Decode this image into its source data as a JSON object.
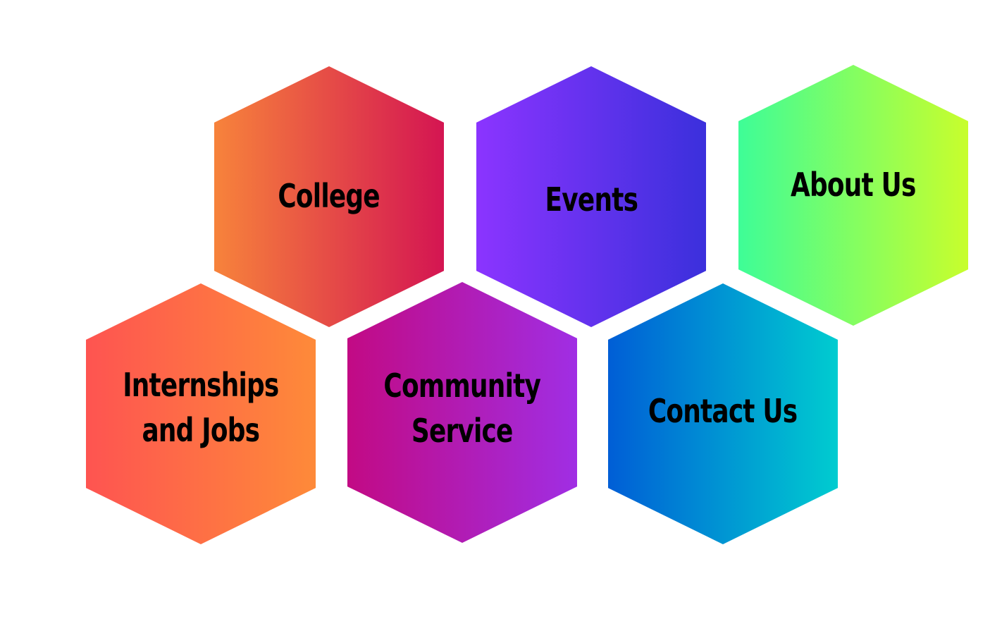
{
  "tiles": {
    "college": {
      "label": "College",
      "color_start": "#f7833b",
      "color_end": "#d41552"
    },
    "events": {
      "label": "Events",
      "color_start": "#8b34ff",
      "color_end": "#3b30dc"
    },
    "about": {
      "label": "About Us",
      "color_start": "#3efd97",
      "color_end": "#c8fe2c"
    },
    "internships": {
      "line1": "Internships",
      "line2": "and Jobs",
      "color_start": "#fe5451",
      "color_end": "#fe8a39"
    },
    "community": {
      "line1": "Community",
      "line2": "Service",
      "color_start": "#c20a84",
      "color_end": "#a02ee4"
    },
    "contact": {
      "label": "Contact Us",
      "color_start": "#005ed6",
      "color_end": "#00ccd0"
    }
  }
}
